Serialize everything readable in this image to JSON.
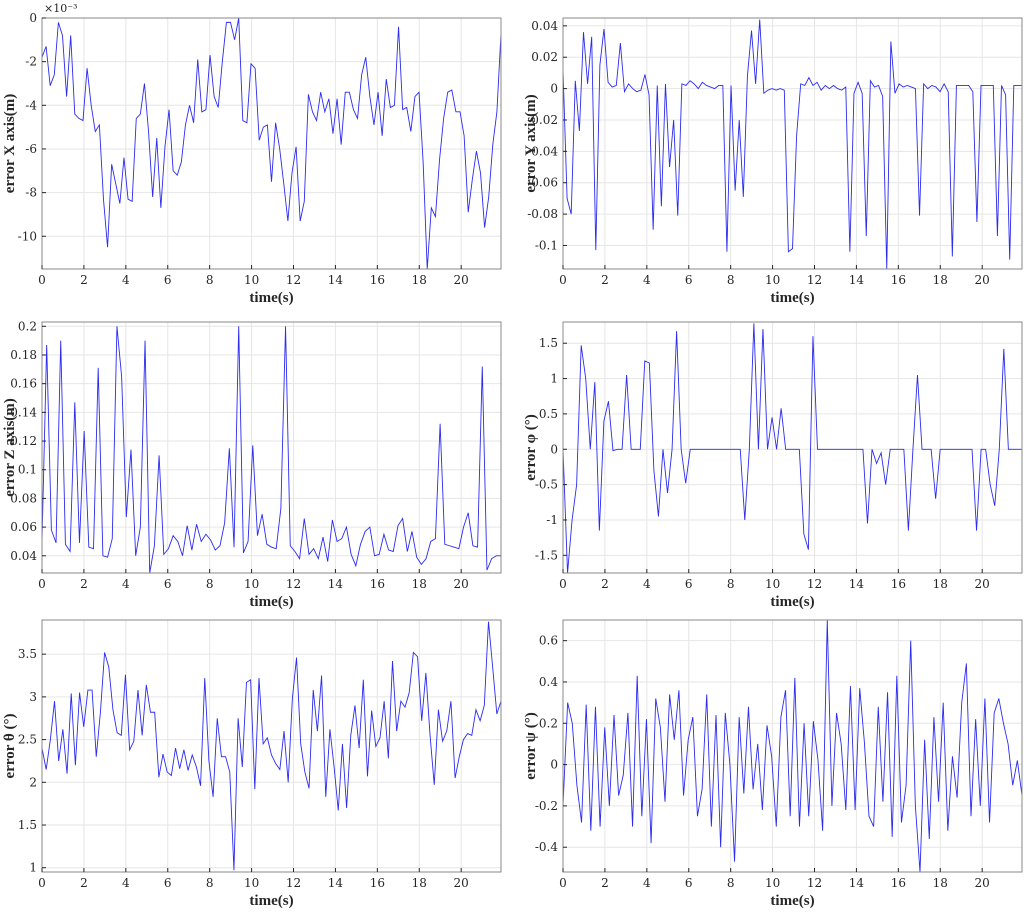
{
  "chart_data": [
    {
      "type": "line",
      "xlabel": "time(s)",
      "ylabel": "error X axis(m)",
      "y_exponent": "×10⁻³",
      "xlim": [
        0,
        21.9
      ],
      "ylim": [
        -11.5,
        0
      ],
      "xticks": [
        "0",
        "2",
        "4",
        "6",
        "8",
        "10",
        "12",
        "14",
        "16",
        "18",
        "20"
      ],
      "xtick_values": [
        0,
        2,
        4,
        6,
        8,
        10,
        12,
        14,
        16,
        18,
        20
      ],
      "yticks": [
        "0",
        "-2",
        "-4",
        "-6",
        "-8",
        "-10"
      ],
      "ytick_values": [
        0,
        -2,
        -4,
        -6,
        -8,
        -10
      ],
      "grid": true,
      "series": [
        {
          "color": "#2b2bf2",
          "values": [
            -1.8,
            -1.3,
            -3.1,
            -2.6,
            -0.2,
            -0.8,
            -3.6,
            -0.8,
            -4.4,
            -4.6,
            -4.7,
            -2.3,
            -4.0,
            -5.2,
            -4.9,
            -8.3,
            -10.5,
            -6.7,
            -7.6,
            -8.5,
            -6.4,
            -8.3,
            -8.4,
            -4.6,
            -4.4,
            -3.0,
            -5.2,
            -8.2,
            -5.5,
            -8.7,
            -5.9,
            -4.2,
            -7.0,
            -7.2,
            -6.6,
            -4.9,
            -4.0,
            -4.8,
            -1.9,
            -4.3,
            -4.2,
            -1.7,
            -3.6,
            -4.1,
            -2.0,
            -0.2,
            -0.2,
            -1.0,
            0.0,
            -4.7,
            -4.8,
            -2.1,
            -2.3,
            -5.6,
            -5.0,
            -4.9,
            -7.5,
            -4.8,
            -6.0,
            -7.6,
            -9.3,
            -7.1,
            -5.9,
            -9.3,
            -8.4,
            -3.5,
            -4.3,
            -4.7,
            -3.4,
            -4.3,
            -3.7,
            -5.3,
            -3.7,
            -5.8,
            -3.4,
            -3.4,
            -4.2,
            -4.6,
            -2.6,
            -1.8,
            -3.6,
            -4.9,
            -3.4,
            -5.4,
            -2.8,
            -4.1,
            -4.0,
            -0.4,
            -4.2,
            -4.1,
            -5.2,
            -3.6,
            -3.4,
            -6.6,
            -11.5,
            -8.7,
            -9.1,
            -6.5,
            -4.6,
            -3.4,
            -3.3,
            -4.3,
            -4.3,
            -5.4,
            -8.9,
            -7.4,
            -6.1,
            -7.1,
            -9.6,
            -8.2,
            -5.8,
            -4.3,
            -0.7
          ]
        }
      ]
    },
    {
      "type": "line",
      "xlabel": "time(s)",
      "ylabel": "error Y axis(m)",
      "xlim": [
        0,
        21.9
      ],
      "ylim": [
        -0.115,
        0.045
      ],
      "xticks": [
        "0",
        "2",
        "4",
        "6",
        "8",
        "10",
        "12",
        "14",
        "16",
        "18",
        "20"
      ],
      "xtick_values": [
        0,
        2,
        4,
        6,
        8,
        10,
        12,
        14,
        16,
        18,
        20
      ],
      "yticks": [
        "0.04",
        "0.02",
        "0",
        "-0.02",
        "-0.04",
        "-0.06",
        "-0.08",
        "-0.1"
      ],
      "ytick_values": [
        0.04,
        0.02,
        0,
        -0.02,
        -0.04,
        -0.06,
        -0.08,
        -0.1
      ],
      "grid": true,
      "series": [
        {
          "color": "#2b2bf2",
          "values": [
            0.012,
            -0.07,
            -0.08,
            0.005,
            -0.027,
            0.036,
            0.003,
            0.033,
            -0.103,
            0.015,
            0.038,
            0.004,
            0.001,
            0.002,
            0.029,
            -0.002,
            0.003,
            0.0,
            -0.002,
            -0.001,
            0.009,
            -0.004,
            -0.09,
            0.002,
            -0.075,
            0.003,
            -0.05,
            -0.02,
            -0.081,
            0.003,
            0.002,
            0.005,
            0.003,
            0.0,
            0.004,
            0.002,
            0.001,
            0.0,
            0.002,
            0.002,
            -0.104,
            0.002,
            -0.065,
            -0.02,
            -0.069,
            0.008,
            0.037,
            0.003,
            0.044,
            -0.003,
            -0.001,
            0.0,
            -0.001,
            0.0,
            -0.001,
            -0.104,
            -0.102,
            -0.03,
            0.003,
            0.002,
            0.007,
            0.002,
            0.004,
            -0.001,
            0.002,
            0.0,
            0.002,
            0.0,
            -0.001,
            0.001,
            -0.104,
            -0.003,
            0.004,
            -0.003,
            -0.094,
            0.005,
            0.001,
            0.002,
            -0.005,
            -0.115,
            0.03,
            -0.003,
            0.003,
            0.001,
            0.002,
            0.001,
            0.0,
            -0.081,
            0.003,
            0.0,
            0.002,
            0.001,
            -0.002,
            0.003,
            -0.002,
            -0.107,
            0.002,
            0.002,
            0.002,
            0.002,
            -0.002,
            -0.085,
            0.002,
            0.002,
            0.002,
            0.002,
            -0.094,
            0.002,
            -0.004,
            -0.109,
            0.002,
            0.002,
            0.002
          ]
        }
      ]
    },
    {
      "type": "line",
      "xlabel": "time(s)",
      "ylabel": "error Z axis(m)",
      "xlim": [
        0,
        21.9
      ],
      "ylim": [
        0.028,
        0.203
      ],
      "xticks": [
        "0",
        "2",
        "4",
        "6",
        "8",
        "10",
        "12",
        "14",
        "16",
        "18",
        "20"
      ],
      "xtick_values": [
        0,
        2,
        4,
        6,
        8,
        10,
        12,
        14,
        16,
        18,
        20
      ],
      "yticks": [
        "0.2",
        "0.18",
        "0.16",
        "0.14",
        "0.12",
        "0.1",
        "0.08",
        "0.06",
        "0.04"
      ],
      "ytick_values": [
        0.2,
        0.18,
        0.16,
        0.14,
        0.12,
        0.1,
        0.08,
        0.06,
        0.04
      ],
      "grid": true,
      "series": [
        {
          "color": "#2b2bf2",
          "values": [
            0.05,
            0.187,
            0.058,
            0.049,
            0.19,
            0.048,
            0.043,
            0.147,
            0.049,
            0.127,
            0.046,
            0.045,
            0.171,
            0.04,
            0.039,
            0.052,
            0.2,
            0.165,
            0.067,
            0.114,
            0.04,
            0.06,
            0.19,
            0.028,
            0.047,
            0.11,
            0.041,
            0.045,
            0.054,
            0.05,
            0.04,
            0.061,
            0.044,
            0.062,
            0.05,
            0.055,
            0.051,
            0.044,
            0.047,
            0.063,
            0.115,
            0.046,
            0.2,
            0.042,
            0.05,
            0.117,
            0.054,
            0.069,
            0.048,
            0.046,
            0.045,
            0.073,
            0.2,
            0.047,
            0.043,
            0.038,
            0.066,
            0.041,
            0.045,
            0.038,
            0.053,
            0.036,
            0.065,
            0.05,
            0.052,
            0.06,
            0.041,
            0.033,
            0.048,
            0.057,
            0.06,
            0.04,
            0.041,
            0.055,
            0.044,
            0.043,
            0.061,
            0.066,
            0.043,
            0.057,
            0.039,
            0.034,
            0.038,
            0.05,
            0.052,
            0.132,
            0.048,
            0.047,
            0.046,
            0.045,
            0.06,
            0.07,
            0.047,
            0.046,
            0.172,
            0.03,
            0.038,
            0.04,
            0.04
          ]
        }
      ]
    },
    {
      "type": "line",
      "xlabel": "time(s)",
      "ylabel": "error φ (°)",
      "xlim": [
        0,
        21.9
      ],
      "ylim": [
        -1.75,
        1.8
      ],
      "xticks": [
        "0",
        "2",
        "4",
        "6",
        "8",
        "10",
        "12",
        "14",
        "16",
        "18",
        "20"
      ],
      "xtick_values": [
        0,
        2,
        4,
        6,
        8,
        10,
        12,
        14,
        16,
        18,
        20
      ],
      "yticks": [
        "1.5",
        "1",
        "0.5",
        "0",
        "-0.5",
        "-1",
        "-1.5"
      ],
      "ytick_values": [
        1.5,
        1,
        0.5,
        0,
        -0.5,
        -1,
        -1.5
      ],
      "grid": true,
      "series": [
        {
          "color": "#2b2bf2",
          "values": [
            0.0,
            -1.75,
            -1.0,
            -0.5,
            1.47,
            1.0,
            0.0,
            0.95,
            -1.15,
            0.4,
            0.68,
            -0.02,
            0.0,
            0.0,
            1.05,
            0.0,
            0.0,
            0.0,
            1.25,
            1.22,
            -0.3,
            -0.95,
            0.0,
            -0.62,
            0.0,
            1.67,
            0.0,
            -0.48,
            0.0,
            0.0,
            0.0,
            0.0,
            0.0,
            0.0,
            0.0,
            0.0,
            0.0,
            0.0,
            0.0,
            0.0,
            -1.0,
            0.0,
            1.78,
            0.0,
            1.7,
            0.0,
            0.45,
            0.0,
            0.58,
            0.0,
            0.0,
            0.0,
            0.0,
            -1.2,
            -1.42,
            1.6,
            0.0,
            0.0,
            0.0,
            0.0,
            0.0,
            0.0,
            0.0,
            0.0,
            0.0,
            0.0,
            0.0,
            -1.05,
            0.0,
            -0.2,
            -0.05,
            -0.5,
            0.0,
            0.0,
            0.0,
            0.0,
            -1.15,
            0.0,
            1.05,
            0.0,
            0.0,
            0.0,
            -0.7,
            0.0,
            0.0,
            0.0,
            0.0,
            0.0,
            0.0,
            0.0,
            0.0,
            -1.15,
            0.0,
            0.0,
            -0.5,
            -0.8,
            0.0,
            1.42,
            0.0,
            0.0,
            0.0,
            0.0
          ]
        }
      ]
    },
    {
      "type": "line",
      "xlabel": "time(s)",
      "ylabel": "error θ (°)",
      "xlim": [
        0,
        21.9
      ],
      "ylim": [
        0.95,
        3.9
      ],
      "xticks": [
        "0",
        "2",
        "4",
        "6",
        "8",
        "10",
        "12",
        "14",
        "16",
        "18",
        "20"
      ],
      "xtick_values": [
        0,
        2,
        4,
        6,
        8,
        10,
        12,
        14,
        16,
        18,
        20
      ],
      "yticks": [
        "3.5",
        "3",
        "2.5",
        "2",
        "1.5",
        "1"
      ],
      "ytick_values": [
        3.5,
        3,
        2.5,
        2,
        1.5,
        1
      ],
      "grid": true,
      "series": [
        {
          "color": "#2b2bf2",
          "values": [
            2.4,
            2.15,
            2.5,
            2.95,
            2.25,
            2.62,
            2.1,
            3.04,
            2.2,
            3.05,
            2.65,
            3.08,
            3.08,
            2.3,
            2.82,
            3.52,
            3.35,
            2.85,
            2.58,
            2.55,
            3.26,
            2.38,
            2.48,
            3.08,
            2.55,
            3.14,
            2.82,
            2.82,
            2.06,
            2.33,
            2.12,
            2.08,
            2.4,
            2.16,
            2.38,
            2.14,
            2.32,
            2.18,
            1.96,
            3.22,
            2.25,
            1.83,
            2.75,
            2.3,
            2.3,
            2.12,
            0.97,
            2.75,
            2.18,
            3.17,
            3.2,
            1.92,
            3.22,
            2.45,
            2.52,
            2.32,
            2.22,
            2.15,
            2.6,
            2.0,
            2.98,
            3.46,
            2.45,
            2.12,
            1.93,
            3.08,
            2.6,
            3.25,
            1.83,
            2.62,
            2.18,
            1.67,
            2.45,
            1.7,
            2.55,
            2.9,
            2.4,
            3.2,
            2.07,
            2.84,
            2.42,
            2.52,
            2.95,
            2.28,
            3.42,
            2.6,
            2.95,
            2.88,
            3.05,
            3.52,
            3.47,
            2.72,
            3.28,
            2.55,
            1.97,
            2.85,
            2.48,
            2.6,
            2.95,
            2.05,
            2.3,
            2.5,
            2.57,
            2.55,
            2.85,
            2.72,
            2.9,
            3.88,
            3.35,
            2.8,
            2.95
          ]
        }
      ]
    },
    {
      "type": "line",
      "xlabel": "time(s)",
      "ylabel": "error ψ (°)",
      "xlim": [
        0,
        21.9
      ],
      "ylim": [
        -0.52,
        0.7
      ],
      "xticks": [
        "0",
        "2",
        "4",
        "6",
        "8",
        "10",
        "12",
        "14",
        "16",
        "18",
        "20"
      ],
      "xtick_values": [
        0,
        2,
        4,
        6,
        8,
        10,
        12,
        14,
        16,
        18,
        20
      ],
      "yticks": [
        "0.6",
        "0.4",
        "0.2",
        "0",
        "-0.2",
        "-0.4"
      ],
      "ytick_values": [
        0.6,
        0.4,
        0.2,
        0,
        -0.2,
        -0.4
      ],
      "grid": true,
      "series": [
        {
          "color": "#2b2bf2",
          "values": [
            -0.2,
            0.3,
            0.2,
            -0.1,
            -0.28,
            0.29,
            -0.32,
            0.28,
            -0.3,
            0.18,
            -0.2,
            0.24,
            -0.15,
            -0.05,
            0.25,
            -0.3,
            0.43,
            -0.25,
            0.22,
            -0.38,
            0.32,
            0.18,
            -0.18,
            0.34,
            0.12,
            0.36,
            -0.15,
            0.12,
            0.23,
            -0.25,
            -0.12,
            0.34,
            -0.3,
            0.24,
            -0.4,
            0.25,
            0.0,
            -0.47,
            0.23,
            -0.14,
            0.28,
            -0.12,
            0.1,
            -0.22,
            0.19,
            0.04,
            -0.3,
            0.23,
            0.36,
            -0.25,
            0.42,
            -0.3,
            0.2,
            -0.25,
            0.21,
            0.02,
            -0.32,
            0.7,
            -0.2,
            0.25,
            0.1,
            -0.22,
            0.38,
            -0.22,
            0.37,
            0.11,
            -0.25,
            -0.3,
            0.28,
            -0.18,
            0.35,
            -0.35,
            0.43,
            -0.28,
            -0.1,
            0.6,
            -0.2,
            -0.52,
            0.12,
            -0.36,
            0.23,
            -0.18,
            0.3,
            -0.32,
            0.04,
            -0.16,
            0.3,
            0.49,
            -0.25,
            0.22,
            -0.2,
            0.32,
            -0.28,
            0.25,
            0.32,
            0.2,
            0.1,
            -0.1,
            0.02,
            -0.15
          ]
        }
      ]
    }
  ]
}
